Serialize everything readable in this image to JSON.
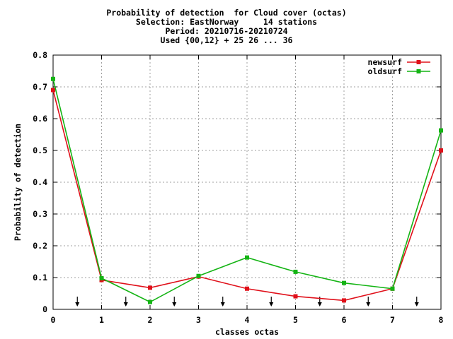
{
  "chart_data": {
    "type": "line",
    "title_lines": [
      "Probability of detection  for Cloud cover (octas)",
      "Selection: EastNorway     14 stations",
      "Period: 20210716-20210724",
      "Used {00,12} + 25 26 ... 36"
    ],
    "xlabel": "classes octas",
    "ylabel": "Probability of detection",
    "xlim": [
      0,
      8
    ],
    "ylim": [
      0,
      0.8
    ],
    "xticks": [
      "0",
      "1",
      "2",
      "3",
      "4",
      "5",
      "6",
      "7",
      "8"
    ],
    "yticks": [
      "0",
      "0.1",
      "0.2",
      "0.3",
      "0.4",
      "0.5",
      "0.6",
      "0.7",
      "0.8"
    ],
    "grid": true,
    "legend_position": "top-right",
    "x": [
      0,
      1,
      2,
      3,
      4,
      5,
      6,
      7,
      8
    ],
    "series": [
      {
        "name": "newsurf",
        "color": "#e0101a",
        "values": [
          0.69,
          0.092,
          0.068,
          0.103,
          0.065,
          0.041,
          0.028,
          0.065,
          0.5
        ]
      },
      {
        "name": "oldsurf",
        "color": "#14b414",
        "values": [
          0.725,
          0.098,
          0.023,
          0.105,
          0.163,
          0.118,
          0.083,
          0.065,
          0.563
        ]
      }
    ],
    "arrows_x": [
      0.5,
      1.5,
      2.5,
      3.5,
      4.5,
      5.5,
      6.5,
      7.5
    ]
  }
}
